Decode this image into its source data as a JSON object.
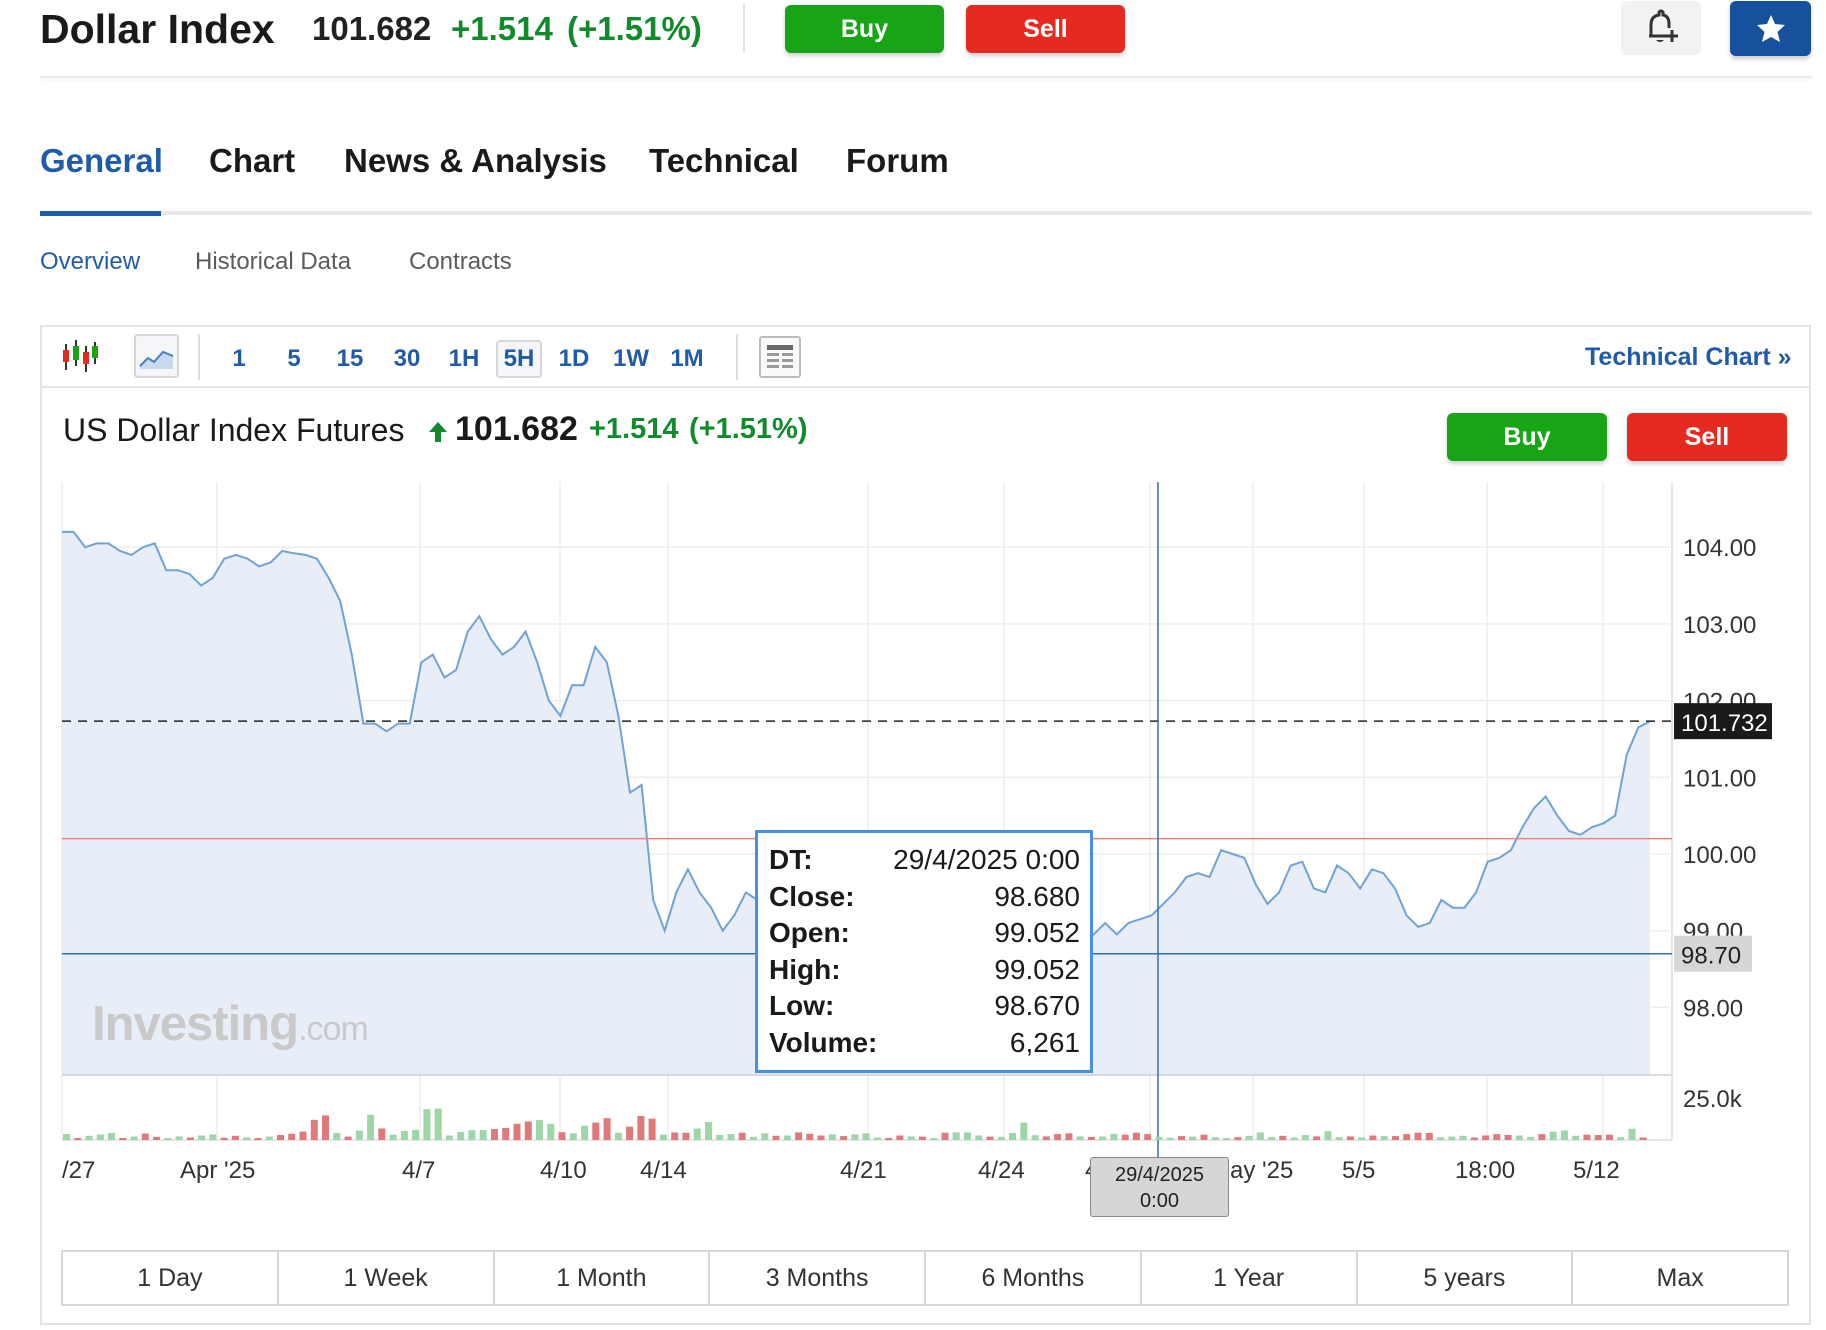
{
  "header": {
    "title": "Dollar Index",
    "price": "101.682",
    "change": "+1.514",
    "change_pct": "(+1.51%)",
    "buy_label": "Buy",
    "sell_label": "Sell",
    "bell_icon": "bell-plus-icon",
    "star_icon": "star-icon"
  },
  "tabs": [
    {
      "label": "General",
      "active": true
    },
    {
      "label": "Chart"
    },
    {
      "label": "News & Analysis"
    },
    {
      "label": "Technical"
    },
    {
      "label": "Forum"
    }
  ],
  "subtabs": [
    {
      "label": "Overview",
      "active": true
    },
    {
      "label": "Historical Data"
    },
    {
      "label": "Contracts"
    }
  ],
  "toolbar": {
    "candles_icon": "candlestick-icon",
    "area_icon": "area-chart-icon",
    "timeframes": [
      "1",
      "5",
      "15",
      "30",
      "1H",
      "5H",
      "1D",
      "1W",
      "1M"
    ],
    "active_timeframe": "5H",
    "layout_icon": "chart-layout-icon",
    "technical_chart_label": "Technical Chart »"
  },
  "instrument": {
    "name": "US Dollar Index Futures",
    "price": "101.682",
    "change": "+1.514",
    "change_pct": "(+1.51%)",
    "buy_label": "Buy",
    "sell_label": "Sell"
  },
  "tooltip": {
    "rows": [
      {
        "k": "DT:",
        "v": "29/4/2025 0:00"
      },
      {
        "k": "Close:",
        "v": "98.680"
      },
      {
        "k": "Open:",
        "v": "99.052"
      },
      {
        "k": "High:",
        "v": "99.052"
      },
      {
        "k": "Low:",
        "v": "98.670"
      },
      {
        "k": "Volume:",
        "v": "6,261"
      }
    ]
  },
  "crosshair_label": [
    "29/4/2025",
    "0:00"
  ],
  "watermark": {
    "brand": "Investing",
    "suffix": ".com"
  },
  "ranges": [
    "1 Day",
    "1 Week",
    "1 Month",
    "3 Months",
    "6 Months",
    "1 Year",
    "5 years",
    "Max"
  ],
  "colors": {
    "accent": "#1f5ba8",
    "up": "#118a2c",
    "buy": "#17a516",
    "sell": "#e52b1f",
    "line": "#6fa3d4",
    "area": "#e8eef7",
    "vol_up": "#9ed6a8",
    "vol_down": "#e07a7a"
  },
  "chart_data": {
    "type": "area",
    "y_ticks": [
      "104.00",
      "103.00",
      "102.00",
      "101.00",
      "100.00",
      "99.00",
      "98.00"
    ],
    "y_tick_values": [
      104,
      103,
      102,
      101,
      100,
      99,
      98
    ],
    "ylim": [
      97.2,
      104.8
    ],
    "x_tick_labels": [
      "/27",
      "Apr '25",
      "4/7",
      "4/10",
      "4/14",
      "4/21",
      "4/24",
      "4/2",
      "ay '25",
      "5/5",
      "18:00",
      "5/12"
    ],
    "last_price_label": "101.732",
    "last_price": 101.732,
    "crosshair_price_label": "98.70",
    "crosshair_price": 98.7,
    "ref_line_value": 100.2,
    "volume_axis_label": "25.0k",
    "series": [
      {
        "values": [
          104.2,
          104.2,
          104.0,
          104.05,
          104.05,
          103.95,
          103.9,
          104.0,
          104.05,
          103.7,
          103.7,
          103.65,
          103.5,
          103.6,
          103.85,
          103.9,
          103.85,
          103.75,
          103.8,
          103.95,
          103.92,
          103.9,
          103.85,
          103.6,
          103.3,
          102.6,
          101.7,
          101.7,
          101.6,
          101.7,
          101.7,
          102.5,
          102.6,
          102.3,
          102.4,
          102.9,
          103.1,
          102.8,
          102.6,
          102.7,
          102.9,
          102.5,
          102.0,
          101.8,
          102.2,
          102.2,
          102.7,
          102.5,
          101.8,
          100.8,
          100.9,
          99.4,
          99.0,
          99.5,
          99.8,
          99.5,
          99.3,
          99.0,
          99.2,
          99.5,
          99.4,
          99.5,
          99.4,
          99.7,
          99.8,
          99.0,
          98.7,
          98.5,
          98.3,
          98.2,
          98.1,
          97.9,
          98.0,
          97.95,
          98.1,
          98.2,
          98.3,
          98.4,
          98.8,
          99.1,
          99.3,
          99.4,
          99.45,
          99.4,
          99.42,
          99.5,
          99.1,
          98.7,
          98.85,
          98.95,
          99.1,
          98.95,
          99.1,
          99.15,
          99.2,
          99.35,
          99.5,
          99.7,
          99.75,
          99.7,
          100.05,
          100.0,
          99.95,
          99.6,
          99.35,
          99.5,
          99.85,
          99.9,
          99.55,
          99.5,
          99.85,
          99.75,
          99.55,
          99.8,
          99.75,
          99.55,
          99.2,
          99.05,
          99.1,
          99.4,
          99.3,
          99.3,
          99.5,
          99.9,
          99.95,
          100.05,
          100.35,
          100.6,
          100.75,
          100.5,
          100.3,
          100.25,
          100.35,
          100.4,
          100.5,
          101.3,
          101.65,
          101.73
        ]
      }
    ],
    "volume": [
      {
        "v": 2100,
        "up": true
      },
      {
        "v": 600,
        "up": false
      },
      {
        "v": 1500,
        "up": true
      },
      {
        "v": 2000,
        "up": true
      },
      {
        "v": 2500,
        "up": true
      },
      {
        "v": 700,
        "up": false
      },
      {
        "v": 1200,
        "up": true
      },
      {
        "v": 2300,
        "up": false
      },
      {
        "v": 1100,
        "up": false
      },
      {
        "v": 600,
        "up": true
      },
      {
        "v": 1300,
        "up": true
      },
      {
        "v": 900,
        "up": false
      },
      {
        "v": 1600,
        "up": true
      },
      {
        "v": 2000,
        "up": true
      },
      {
        "v": 800,
        "up": false
      },
      {
        "v": 1500,
        "up": false
      },
      {
        "v": 900,
        "up": true
      },
      {
        "v": 700,
        "up": false
      },
      {
        "v": 1200,
        "up": true
      },
      {
        "v": 1800,
        "up": false
      },
      {
        "v": 2200,
        "up": false
      },
      {
        "v": 3000,
        "up": false
      },
      {
        "v": 7200,
        "up": false
      },
      {
        "v": 8800,
        "up": false
      },
      {
        "v": 2500,
        "up": true
      },
      {
        "v": 1200,
        "up": false
      },
      {
        "v": 3400,
        "up": true
      },
      {
        "v": 9000,
        "up": true
      },
      {
        "v": 4100,
        "up": false
      },
      {
        "v": 1900,
        "up": true
      },
      {
        "v": 3200,
        "up": true
      },
      {
        "v": 3600,
        "up": true
      },
      {
        "v": 11000,
        "up": true
      },
      {
        "v": 11200,
        "up": true
      },
      {
        "v": 1600,
        "up": true
      },
      {
        "v": 2900,
        "up": true
      },
      {
        "v": 3500,
        "up": true
      },
      {
        "v": 3600,
        "up": true
      },
      {
        "v": 3900,
        "up": false
      },
      {
        "v": 4300,
        "up": false
      },
      {
        "v": 5800,
        "up": false
      },
      {
        "v": 6600,
        "up": false
      },
      {
        "v": 7100,
        "up": true
      },
      {
        "v": 5800,
        "up": true
      },
      {
        "v": 2800,
        "up": false
      },
      {
        "v": 2400,
        "up": true
      },
      {
        "v": 5100,
        "up": true
      },
      {
        "v": 6200,
        "up": false
      },
      {
        "v": 7800,
        "up": false
      },
      {
        "v": 2600,
        "up": true
      },
      {
        "v": 4800,
        "up": false
      },
      {
        "v": 8600,
        "up": false
      },
      {
        "v": 7600,
        "up": false
      },
      {
        "v": 1900,
        "up": true
      },
      {
        "v": 2700,
        "up": false
      },
      {
        "v": 2600,
        "up": false
      },
      {
        "v": 4100,
        "up": true
      },
      {
        "v": 6400,
        "up": true
      },
      {
        "v": 1800,
        "up": true
      },
      {
        "v": 2100,
        "up": true
      },
      {
        "v": 2600,
        "up": false
      },
      {
        "v": 1100,
        "up": true
      },
      {
        "v": 2400,
        "up": true
      },
      {
        "v": 1500,
        "up": false
      },
      {
        "v": 1600,
        "up": true
      },
      {
        "v": 2700,
        "up": false
      },
      {
        "v": 2200,
        "up": false
      },
      {
        "v": 1600,
        "up": false
      },
      {
        "v": 2000,
        "up": true
      },
      {
        "v": 1400,
        "up": false
      },
      {
        "v": 2000,
        "up": true
      },
      {
        "v": 2400,
        "up": true
      },
      {
        "v": 900,
        "up": true
      },
      {
        "v": 700,
        "up": false
      },
      {
        "v": 1600,
        "up": false
      },
      {
        "v": 1300,
        "up": true
      },
      {
        "v": 1200,
        "up": false
      },
      {
        "v": 600,
        "up": true
      },
      {
        "v": 2600,
        "up": false
      },
      {
        "v": 2700,
        "up": true
      },
      {
        "v": 2700,
        "up": true
      },
      {
        "v": 1600,
        "up": true
      },
      {
        "v": 1200,
        "up": false
      },
      {
        "v": 1100,
        "up": true
      },
      {
        "v": 2500,
        "up": true
      },
      {
        "v": 6200,
        "up": true
      },
      {
        "v": 1700,
        "up": true
      },
      {
        "v": 1300,
        "up": false
      },
      {
        "v": 2100,
        "up": false
      },
      {
        "v": 2400,
        "up": false
      },
      {
        "v": 1300,
        "up": true
      },
      {
        "v": 1100,
        "up": false
      },
      {
        "v": 1200,
        "up": true
      },
      {
        "v": 2200,
        "up": true
      },
      {
        "v": 1900,
        "up": false
      },
      {
        "v": 2600,
        "up": false
      },
      {
        "v": 2100,
        "up": false
      },
      {
        "v": 1100,
        "up": true
      },
      {
        "v": 800,
        "up": true
      },
      {
        "v": 1400,
        "up": false
      },
      {
        "v": 1200,
        "up": true
      },
      {
        "v": 1900,
        "up": false
      },
      {
        "v": 1000,
        "up": true
      },
      {
        "v": 600,
        "up": true
      },
      {
        "v": 1000,
        "up": false
      },
      {
        "v": 1500,
        "up": true
      },
      {
        "v": 2700,
        "up": true
      },
      {
        "v": 1100,
        "up": true
      },
      {
        "v": 1500,
        "up": false
      },
      {
        "v": 900,
        "up": true
      },
      {
        "v": 1800,
        "up": true
      },
      {
        "v": 1300,
        "up": false
      },
      {
        "v": 3100,
        "up": true
      },
      {
        "v": 1000,
        "up": true
      },
      {
        "v": 1300,
        "up": false
      },
      {
        "v": 900,
        "up": true
      },
      {
        "v": 1600,
        "up": false
      },
      {
        "v": 1400,
        "up": true
      },
      {
        "v": 1400,
        "up": false
      },
      {
        "v": 2100,
        "up": false
      },
      {
        "v": 2600,
        "up": false
      },
      {
        "v": 2500,
        "up": false
      },
      {
        "v": 1000,
        "up": true
      },
      {
        "v": 1200,
        "up": true
      },
      {
        "v": 1500,
        "up": true
      },
      {
        "v": 900,
        "up": false
      },
      {
        "v": 1600,
        "up": false
      },
      {
        "v": 2100,
        "up": false
      },
      {
        "v": 1800,
        "up": false
      },
      {
        "v": 1600,
        "up": true
      },
      {
        "v": 1100,
        "up": true
      },
      {
        "v": 2100,
        "up": false
      },
      {
        "v": 3000,
        "up": true
      },
      {
        "v": 3400,
        "up": true
      },
      {
        "v": 1500,
        "up": true
      },
      {
        "v": 1900,
        "up": false
      },
      {
        "v": 1800,
        "up": false
      },
      {
        "v": 1900,
        "up": false
      },
      {
        "v": 1000,
        "up": true
      },
      {
        "v": 4000,
        "up": true
      },
      {
        "v": 900,
        "up": false
      }
    ]
  }
}
